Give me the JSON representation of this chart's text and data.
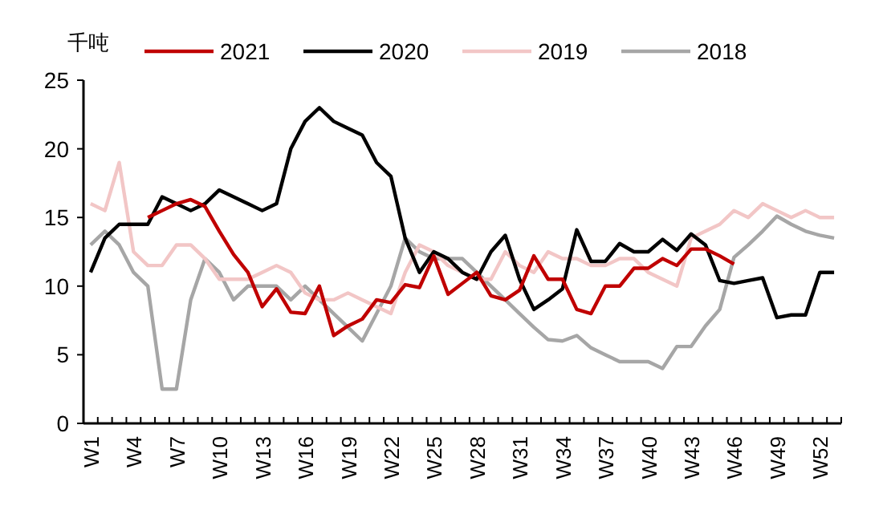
{
  "chart_data": {
    "type": "line",
    "ylabel": "千吨",
    "categories": [
      "W1",
      null,
      null,
      "W4",
      null,
      null,
      "W7",
      null,
      null,
      "W10",
      null,
      null,
      "W13",
      null,
      null,
      "W16",
      null,
      null,
      "W19",
      null,
      null,
      "W22",
      null,
      null,
      "W25",
      null,
      null,
      "W28",
      null,
      null,
      "W31",
      null,
      null,
      "W34",
      null,
      null,
      "W37",
      null,
      null,
      "W40",
      null,
      null,
      "W43",
      null,
      null,
      "W46",
      null,
      null,
      "W49",
      null,
      null,
      "W52",
      null
    ],
    "ylim": [
      0,
      25
    ],
    "yticks": [
      0,
      5,
      10,
      15,
      20,
      25
    ],
    "legend": "top",
    "series": [
      {
        "name": "2021",
        "color": "#c00000",
        "values": [
          null,
          null,
          null,
          null,
          15,
          15.5,
          16,
          16.3,
          15.8,
          14,
          12.3,
          11,
          8.5,
          9.8,
          8.1,
          8,
          10,
          6.4,
          7.1,
          7.6,
          9,
          8.8,
          10.1,
          9.9,
          12.2,
          9.4,
          10.2,
          11,
          9.3,
          9,
          9.7,
          12.2,
          10.5,
          10.5,
          8.3,
          8,
          10,
          10,
          11.3,
          11.3,
          12,
          11.5,
          12.7,
          12.7,
          12.2,
          11.6,
          null,
          null,
          null,
          null,
          null,
          null,
          null
        ]
      },
      {
        "name": "2020",
        "color": "#000000",
        "values": [
          11,
          13.5,
          14.5,
          14.5,
          14.5,
          16.5,
          16,
          15.5,
          16,
          17,
          16.5,
          16,
          15.5,
          16,
          20,
          22,
          23,
          22,
          21.5,
          21,
          19,
          18,
          13.5,
          11,
          12.5,
          12,
          11,
          10.5,
          12.5,
          13.7,
          10.5,
          8.3,
          9,
          9.8,
          14.1,
          11.8,
          11.8,
          13.1,
          12.5,
          12.5,
          13.4,
          12.6,
          13.8,
          13,
          10.4,
          10.2,
          10.4,
          10.6,
          7.7,
          7.9,
          7.9,
          11,
          11
        ]
      },
      {
        "name": "2019",
        "color": "#f2c6c6",
        "values": [
          16,
          15.5,
          19,
          12.5,
          11.5,
          11.5,
          13,
          13,
          12,
          10.5,
          10.5,
          10.5,
          11,
          11.5,
          11,
          9.5,
          9,
          9,
          9.5,
          9,
          8.5,
          8,
          11,
          13,
          12.5,
          11.5,
          11,
          10.5,
          10.5,
          12.5,
          11.5,
          11,
          12.5,
          12,
          12,
          11.5,
          11.5,
          12,
          12,
          11,
          10.5,
          10,
          13.5,
          14,
          14.5,
          15.5,
          15,
          16,
          15.5,
          15,
          15.5,
          15,
          15
        ]
      },
      {
        "name": "2018",
        "color": "#a6a6a6",
        "values": [
          13,
          14,
          13,
          11,
          10,
          2.5,
          2.5,
          9,
          12,
          11,
          9,
          10,
          10,
          10,
          9,
          10,
          9,
          8,
          7,
          6,
          8,
          10,
          13.5,
          12.5,
          12,
          12,
          12,
          11,
          10,
          9,
          8,
          7,
          6.1,
          6,
          6.4,
          5.5,
          5,
          4.5,
          4.5,
          4.5,
          4,
          5.6,
          5.6,
          7.1,
          8.3,
          12.1,
          13,
          14,
          15.1,
          14.5,
          14,
          13.7,
          13.5
        ]
      }
    ]
  }
}
